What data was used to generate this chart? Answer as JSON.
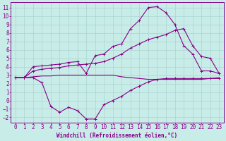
{
  "xlabel": "Windchill (Refroidissement éolien,°C)",
  "bg_color": "#c8ece8",
  "grid_color": "#aad4d0",
  "line_color": "#880088",
  "x_ticks": [
    0,
    1,
    2,
    3,
    4,
    5,
    6,
    7,
    8,
    9,
    10,
    11,
    12,
    13,
    14,
    15,
    16,
    17,
    18,
    19,
    20,
    21,
    22,
    23
  ],
  "ylim": [
    -2.6,
    11.6
  ],
  "xlim": [
    -0.5,
    23.5
  ],
  "y_ticks": [
    -2,
    -1,
    0,
    1,
    2,
    3,
    4,
    5,
    6,
    7,
    8,
    9,
    10,
    11
  ],
  "curve1_x": [
    0,
    1,
    2,
    3,
    4,
    5,
    6,
    7,
    8,
    9,
    10,
    11,
    12,
    13,
    14,
    15,
    16,
    17,
    18,
    19,
    20,
    21,
    22,
    23
  ],
  "curve1_y": [
    2.7,
    2.7,
    4.0,
    4.1,
    4.2,
    4.3,
    4.5,
    4.6,
    3.2,
    5.3,
    5.5,
    6.4,
    6.7,
    8.5,
    9.5,
    11.0,
    11.1,
    10.4,
    9.0,
    6.5,
    5.5,
    3.5,
    3.5,
    3.2
  ],
  "curve2_x": [
    0,
    1,
    2,
    3,
    4,
    5,
    6,
    7,
    8,
    9,
    10,
    11,
    12,
    13,
    14,
    15,
    16,
    17,
    18,
    19,
    20,
    21,
    22,
    23
  ],
  "curve2_y": [
    2.7,
    2.7,
    3.5,
    3.7,
    3.8,
    3.9,
    4.1,
    4.2,
    4.3,
    4.4,
    4.6,
    5.0,
    5.5,
    6.2,
    6.7,
    7.2,
    7.5,
    7.8,
    8.3,
    8.5,
    6.5,
    5.2,
    5.0,
    3.2
  ],
  "curve3_x": [
    0,
    1,
    2,
    3,
    4,
    5,
    6,
    7,
    8,
    9,
    10,
    11,
    12,
    13,
    14,
    15,
    16,
    17,
    18,
    19,
    20,
    21,
    22,
    23
  ],
  "curve3_y": [
    2.7,
    2.7,
    2.8,
    2.9,
    2.9,
    3.0,
    3.0,
    3.0,
    3.0,
    3.0,
    3.0,
    3.0,
    2.8,
    2.7,
    2.6,
    2.5,
    2.5,
    2.5,
    2.5,
    2.5,
    2.5,
    2.5,
    2.6,
    2.7
  ],
  "curve4_x": [
    0,
    1,
    2,
    3,
    4,
    5,
    6,
    7,
    8,
    9,
    10,
    11,
    12,
    13,
    14,
    15,
    16,
    17,
    18,
    19,
    20,
    21,
    22,
    23
  ],
  "curve4_y": [
    2.7,
    2.7,
    2.7,
    2.1,
    -0.7,
    -1.4,
    -0.8,
    -1.2,
    -2.2,
    -2.2,
    -0.5,
    0.0,
    0.5,
    1.2,
    1.7,
    2.2,
    2.5,
    2.6,
    2.6,
    2.6,
    2.6,
    2.6,
    2.6,
    2.6
  ],
  "tick_fontsize": 5.5,
  "xlabel_fontsize": 5.5
}
